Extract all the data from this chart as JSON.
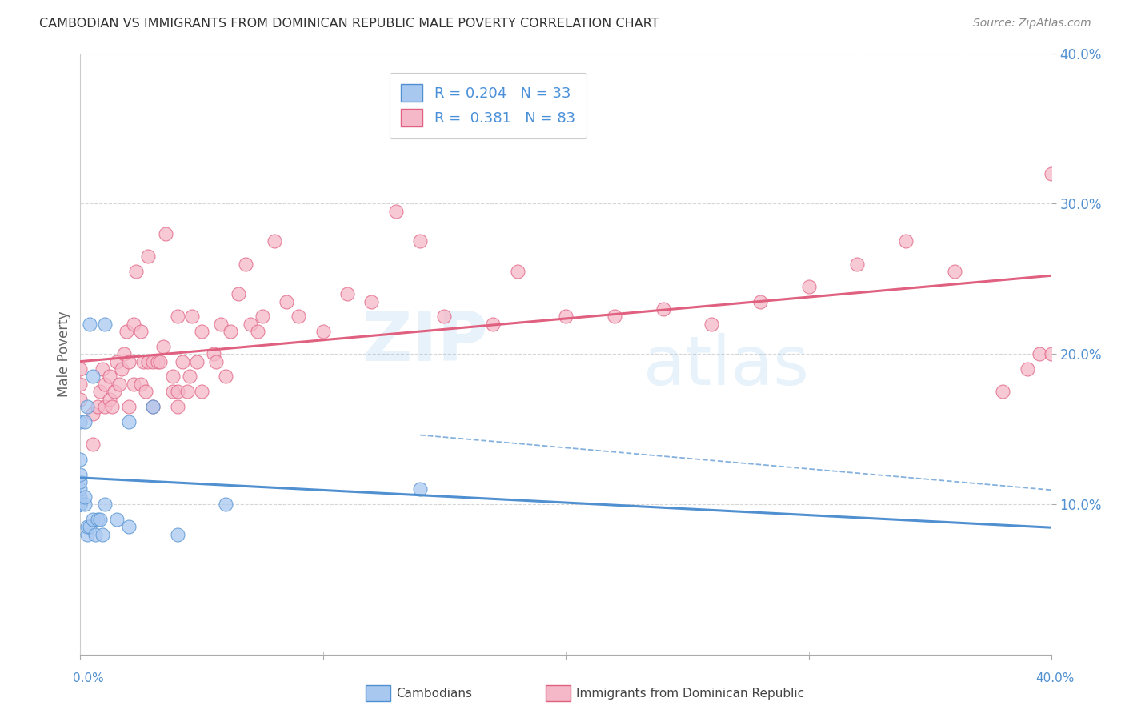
{
  "title": "CAMBODIAN VS IMMIGRANTS FROM DOMINICAN REPUBLIC MALE POVERTY CORRELATION CHART",
  "source": "Source: ZipAtlas.com",
  "ylabel": "Male Poverty",
  "xlim": [
    0.0,
    0.4
  ],
  "ylim": [
    0.0,
    0.4
  ],
  "xtick_vals": [
    0.0,
    0.1,
    0.2,
    0.3,
    0.4
  ],
  "ytick_vals": [
    0.1,
    0.2,
    0.3,
    0.4
  ],
  "background_color": "#ffffff",
  "grid_color": "#cccccc",
  "cambodian_fill": "#a8c8f0",
  "cambodian_edge": "#5090d0",
  "dominican_fill": "#f5b8c8",
  "dominican_edge": "#e06080",
  "cambodian_line_color": "#5090d0",
  "dominican_line_color": "#e06080",
  "R_cambodian": 0.204,
  "N_cambodian": 33,
  "R_dominican": 0.381,
  "N_dominican": 83,
  "watermark_text": "ZIPAtlas",
  "legend_label_cam": "Cambodians",
  "legend_label_dom": "Immigrants from Dominican Republic",
  "cambodian_x": [
    0.0,
    0.0,
    0.0,
    0.0,
    0.0,
    0.0,
    0.0,
    0.0,
    0.0,
    0.0,
    0.002,
    0.002,
    0.002,
    0.003,
    0.003,
    0.003,
    0.004,
    0.004,
    0.005,
    0.005,
    0.006,
    0.007,
    0.008,
    0.009,
    0.01,
    0.01,
    0.015,
    0.02,
    0.02,
    0.03,
    0.04,
    0.06,
    0.14
  ],
  "cambodian_y": [
    0.1,
    0.1,
    0.1,
    0.1,
    0.105,
    0.11,
    0.115,
    0.12,
    0.13,
    0.155,
    0.1,
    0.105,
    0.155,
    0.08,
    0.085,
    0.165,
    0.085,
    0.22,
    0.09,
    0.185,
    0.08,
    0.09,
    0.09,
    0.08,
    0.1,
    0.22,
    0.09,
    0.085,
    0.155,
    0.165,
    0.08,
    0.1,
    0.11
  ],
  "dominican_x": [
    0.0,
    0.0,
    0.0,
    0.005,
    0.005,
    0.007,
    0.008,
    0.009,
    0.01,
    0.01,
    0.012,
    0.012,
    0.013,
    0.014,
    0.015,
    0.016,
    0.017,
    0.018,
    0.019,
    0.02,
    0.02,
    0.022,
    0.022,
    0.023,
    0.025,
    0.025,
    0.026,
    0.027,
    0.028,
    0.028,
    0.03,
    0.03,
    0.032,
    0.033,
    0.034,
    0.035,
    0.038,
    0.038,
    0.04,
    0.04,
    0.04,
    0.042,
    0.044,
    0.045,
    0.046,
    0.048,
    0.05,
    0.05,
    0.055,
    0.056,
    0.058,
    0.06,
    0.062,
    0.065,
    0.068,
    0.07,
    0.073,
    0.075,
    0.08,
    0.085,
    0.09,
    0.1,
    0.11,
    0.12,
    0.13,
    0.14,
    0.15,
    0.17,
    0.18,
    0.2,
    0.22,
    0.24,
    0.26,
    0.28,
    0.3,
    0.32,
    0.34,
    0.36,
    0.38,
    0.39,
    0.395,
    0.4,
    0.4
  ],
  "dominican_y": [
    0.17,
    0.18,
    0.19,
    0.14,
    0.16,
    0.165,
    0.175,
    0.19,
    0.165,
    0.18,
    0.17,
    0.185,
    0.165,
    0.175,
    0.195,
    0.18,
    0.19,
    0.2,
    0.215,
    0.165,
    0.195,
    0.18,
    0.22,
    0.255,
    0.18,
    0.215,
    0.195,
    0.175,
    0.195,
    0.265,
    0.165,
    0.195,
    0.195,
    0.195,
    0.205,
    0.28,
    0.175,
    0.185,
    0.165,
    0.175,
    0.225,
    0.195,
    0.175,
    0.185,
    0.225,
    0.195,
    0.175,
    0.215,
    0.2,
    0.195,
    0.22,
    0.185,
    0.215,
    0.24,
    0.26,
    0.22,
    0.215,
    0.225,
    0.275,
    0.235,
    0.225,
    0.215,
    0.24,
    0.235,
    0.295,
    0.275,
    0.225,
    0.22,
    0.255,
    0.225,
    0.225,
    0.23,
    0.22,
    0.235,
    0.245,
    0.26,
    0.275,
    0.255,
    0.175,
    0.19,
    0.2,
    0.32,
    0.2
  ]
}
